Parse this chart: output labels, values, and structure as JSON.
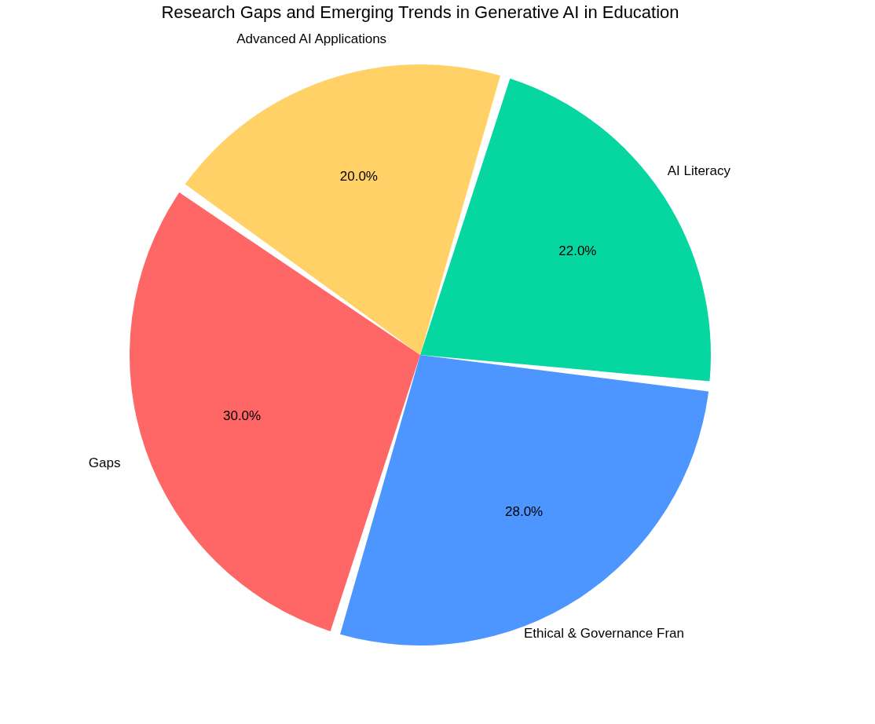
{
  "chart_data": {
    "type": "pie",
    "title": "Research Gaps and Emerging Trends in Generative AI in Education",
    "categories": [
      "Gaps",
      "Ethical & Governance Fran",
      "AI Literacy",
      "Advanced AI Applications"
    ],
    "values": [
      30,
      28,
      22,
      20
    ],
    "colors": [
      "#ff6666",
      "#4d96ff",
      "#06d6a0",
      "#ffd166"
    ],
    "value_labels": [
      "30.0%",
      "28.0%",
      "22.0%",
      "20.0%"
    ],
    "legend": false
  }
}
